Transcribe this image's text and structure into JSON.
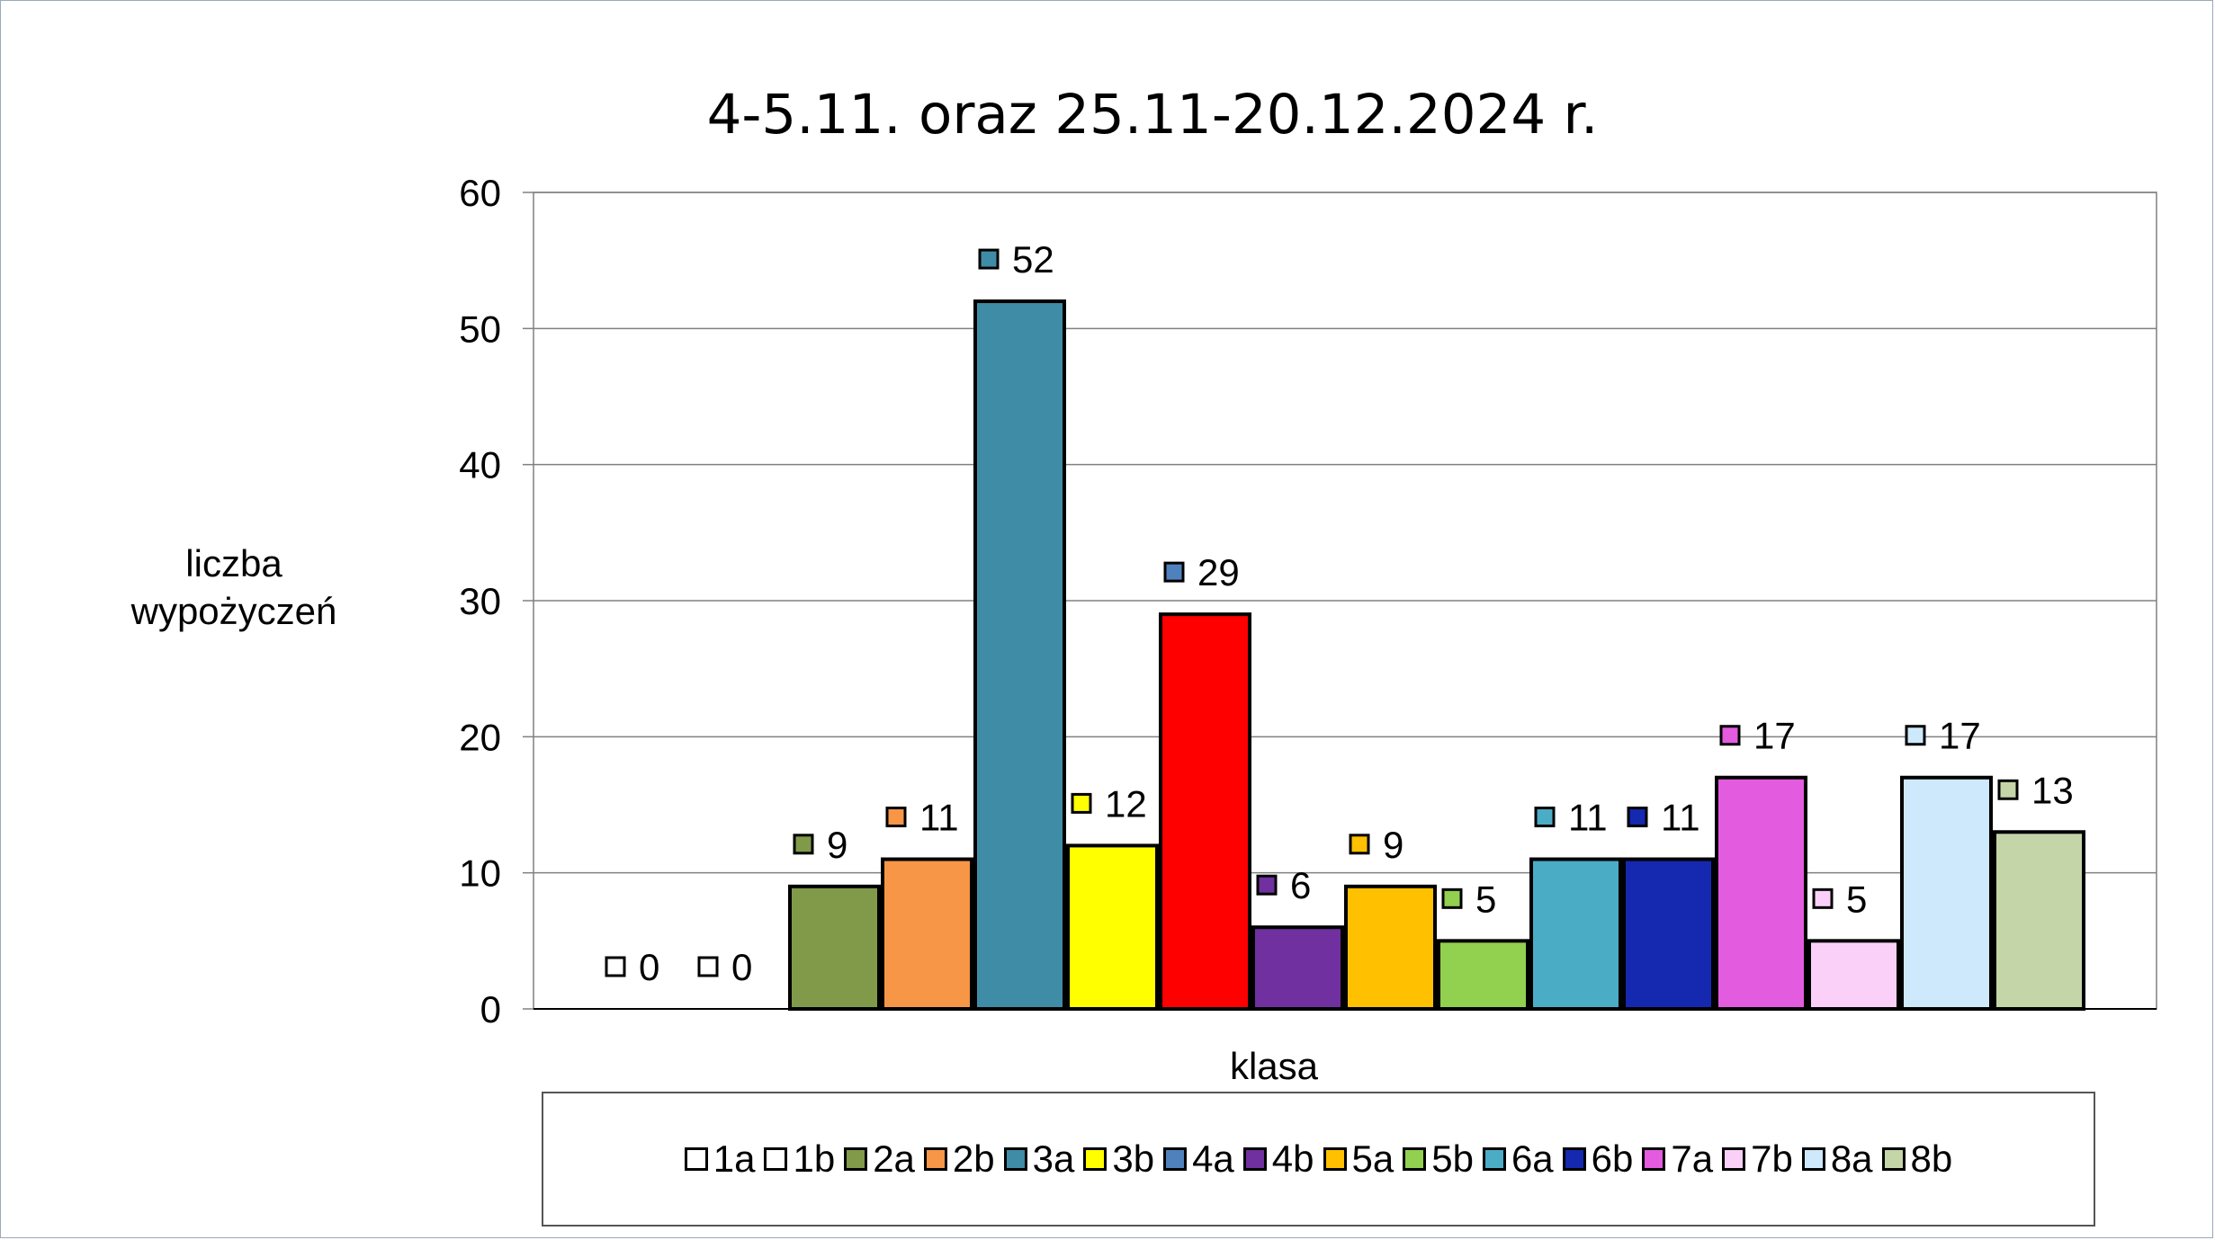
{
  "chart_data": {
    "type": "bar",
    "title": "4-5.11. oraz 25.11-20.12.2024 r.",
    "xlabel": "klasa",
    "ylabel": "liczba wypożyczeń",
    "ylim": [
      0,
      60
    ],
    "yticks": [
      0,
      10,
      20,
      30,
      40,
      50,
      60
    ],
    "grid": true,
    "legend_position": "bottom",
    "categories": [
      "1a",
      "1b",
      "2a",
      "2b",
      "3a",
      "3b",
      "4a",
      "4b",
      "5a",
      "5b",
      "6a",
      "6b",
      "7a",
      "7b",
      "8a",
      "8b"
    ],
    "values": [
      0,
      0,
      9,
      11,
      52,
      12,
      29,
      6,
      9,
      5,
      11,
      11,
      17,
      5,
      17,
      13
    ],
    "bar_colors": [
      "#ffffff",
      "#ffffff",
      "#809a4a",
      "#f79646",
      "#3f8ca6",
      "#ffff00",
      "#ff0000",
      "#7030a0",
      "#ffc000",
      "#92d050",
      "#4bacc6",
      "#1528b0",
      "#e35bdf",
      "#fbd0f8",
      "#cde9fb",
      "#c4d6a8"
    ],
    "marker_colors": [
      "#ffffff",
      "#ffffff",
      "#809a4a",
      "#f79646",
      "#3f8ca6",
      "#ffff00",
      "#4f81bd",
      "#7030a0",
      "#ffc000",
      "#92d050",
      "#4bacc6",
      "#1528b0",
      "#e35bdf",
      "#fbd0f8",
      "#cde9fb",
      "#c4d6a8"
    ],
    "legend_colors": [
      "#ffffff",
      "#ffffff",
      "#809a4a",
      "#f79646",
      "#3f8ca6",
      "#ffff00",
      "#4f81bd",
      "#7030a0",
      "#ffc000",
      "#92d050",
      "#4bacc6",
      "#1528b0",
      "#e35bdf",
      "#fbd0f8",
      "#cde9fb",
      "#c4d6a8"
    ]
  }
}
